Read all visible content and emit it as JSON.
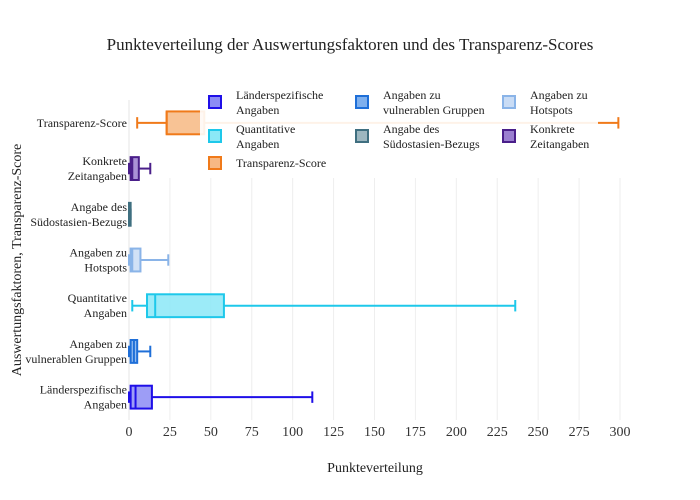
{
  "chart_data": {
    "type": "box",
    "orientation": "horizontal",
    "title": "Punkteverteilung der Auswertungsfaktoren und des Transparenz-Scores",
    "xlabel": "Punkteverteilung",
    "ylabel": "Auswertungsfaktoren, Transparenz-Score",
    "xlim": [
      0,
      300
    ],
    "xticks": [
      0,
      25,
      50,
      75,
      100,
      125,
      150,
      175,
      200,
      225,
      250,
      275,
      300
    ],
    "grid": true,
    "legend_position": "top",
    "series": [
      {
        "name": "Länderspezifische Angaben",
        "label_lines": [
          "Länderspezifische",
          "Angaben"
        ],
        "legend_lines": [
          "Länderspezifische",
          "Angaben"
        ],
        "color": "#1f0fe8",
        "fill": "#8c8cf5",
        "min": 0,
        "q1": 1,
        "median": 4,
        "q3": 14,
        "max": 112
      },
      {
        "name": "Angaben zu vulnerablen Gruppen",
        "label_lines": [
          "Angaben zu",
          "vulnerablen Gruppen"
        ],
        "legend_lines": [
          "Angaben zu",
          "vulnerablen Gruppen"
        ],
        "color": "#1f6fd8",
        "fill": "#7fb0ee",
        "min": 0,
        "q1": 1,
        "median": 3,
        "q3": 5,
        "max": 13
      },
      {
        "name": "Quantitative Angaben",
        "label_lines": [
          "Quantitative",
          "Angaben"
        ],
        "legend_lines": [
          "Quantitative",
          "Angaben"
        ],
        "color": "#1ec8ea",
        "fill": "#8be8f7",
        "min": 2,
        "q1": 11,
        "median": 16,
        "q3": 58,
        "max": 236
      },
      {
        "name": "Angaben zu Hotspots",
        "label_lines": [
          "Angaben zu",
          "Hotspots"
        ],
        "legend_lines": [
          "Angaben zu",
          "Hotspots"
        ],
        "color": "#8ab4e8",
        "fill": "#c9dcf5",
        "min": 0,
        "q1": 1,
        "median": 2,
        "q3": 7,
        "max": 24
      },
      {
        "name": "Angabe des Südostasien-Bezugs",
        "label_lines": [
          "Angabe des",
          "Südostasien-Bezugs"
        ],
        "legend_lines": [
          "Angabe des",
          "Südostasien-Bezugs"
        ],
        "color": "#3f6f80",
        "fill": "#9db7c0",
        "min": 0,
        "q1": 0,
        "median": 0,
        "q3": 1,
        "max": 1
      },
      {
        "name": "Konkrete Zeitangaben",
        "label_lines": [
          "Konkrete",
          "Zeitangaben"
        ],
        "legend_lines": [
          "Konkrete",
          "Zeitangaben"
        ],
        "color": "#4a1f8a",
        "fill": "#9b7fd0",
        "min": 0,
        "q1": 1,
        "median": 2,
        "q3": 6,
        "max": 13
      },
      {
        "name": "Transparenz-Score",
        "label_lines": [
          "Transparenz-Score"
        ],
        "legend_lines": [
          "Transparenz-Score"
        ],
        "color": "#f07a1a",
        "fill": "#f7b883",
        "min": 5,
        "q1": 23,
        "median": 23,
        "q3": 46,
        "max": 299
      }
    ]
  }
}
